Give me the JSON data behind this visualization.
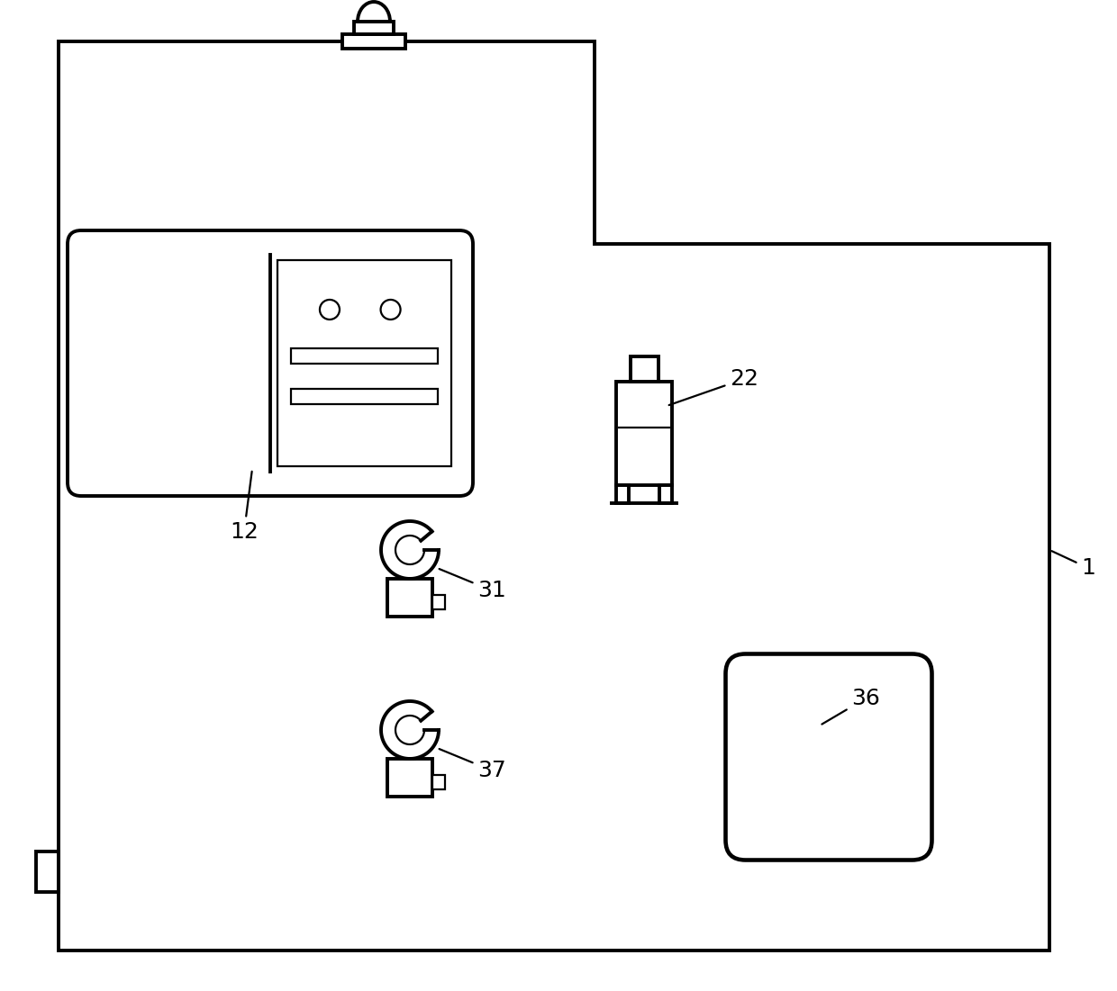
{
  "bg_color": "#ffffff",
  "line_color": "#000000",
  "lw_main": 2.8,
  "lw_thin": 1.6,
  "fig_width": 12.4,
  "fig_height": 11.01,
  "label_fontsize": 18
}
